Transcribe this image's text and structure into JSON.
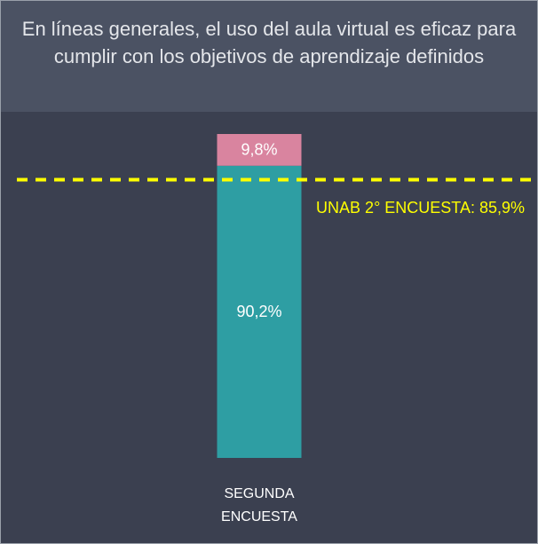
{
  "chart_data": {
    "type": "stacked_bar",
    "title": "En líneas generales, el uso del aula virtual es eficaz para cumplir con los objetivos de aprendizaje definidos",
    "categories": [
      "SEGUNDA ENCUESTA"
    ],
    "series": [
      {
        "color": "#2e9ea3",
        "values": [
          90.2
        ],
        "value_labels": [
          "90,2%"
        ]
      },
      {
        "color": "#d9849f",
        "values": [
          9.8
        ],
        "value_labels": [
          "9,8%"
        ]
      }
    ],
    "ylim": [
      0,
      100
    ],
    "reference_line": {
      "value": 85.9,
      "label": "UNAB 2° ENCUESTA: 85,9%",
      "color": "#ffff00"
    }
  }
}
